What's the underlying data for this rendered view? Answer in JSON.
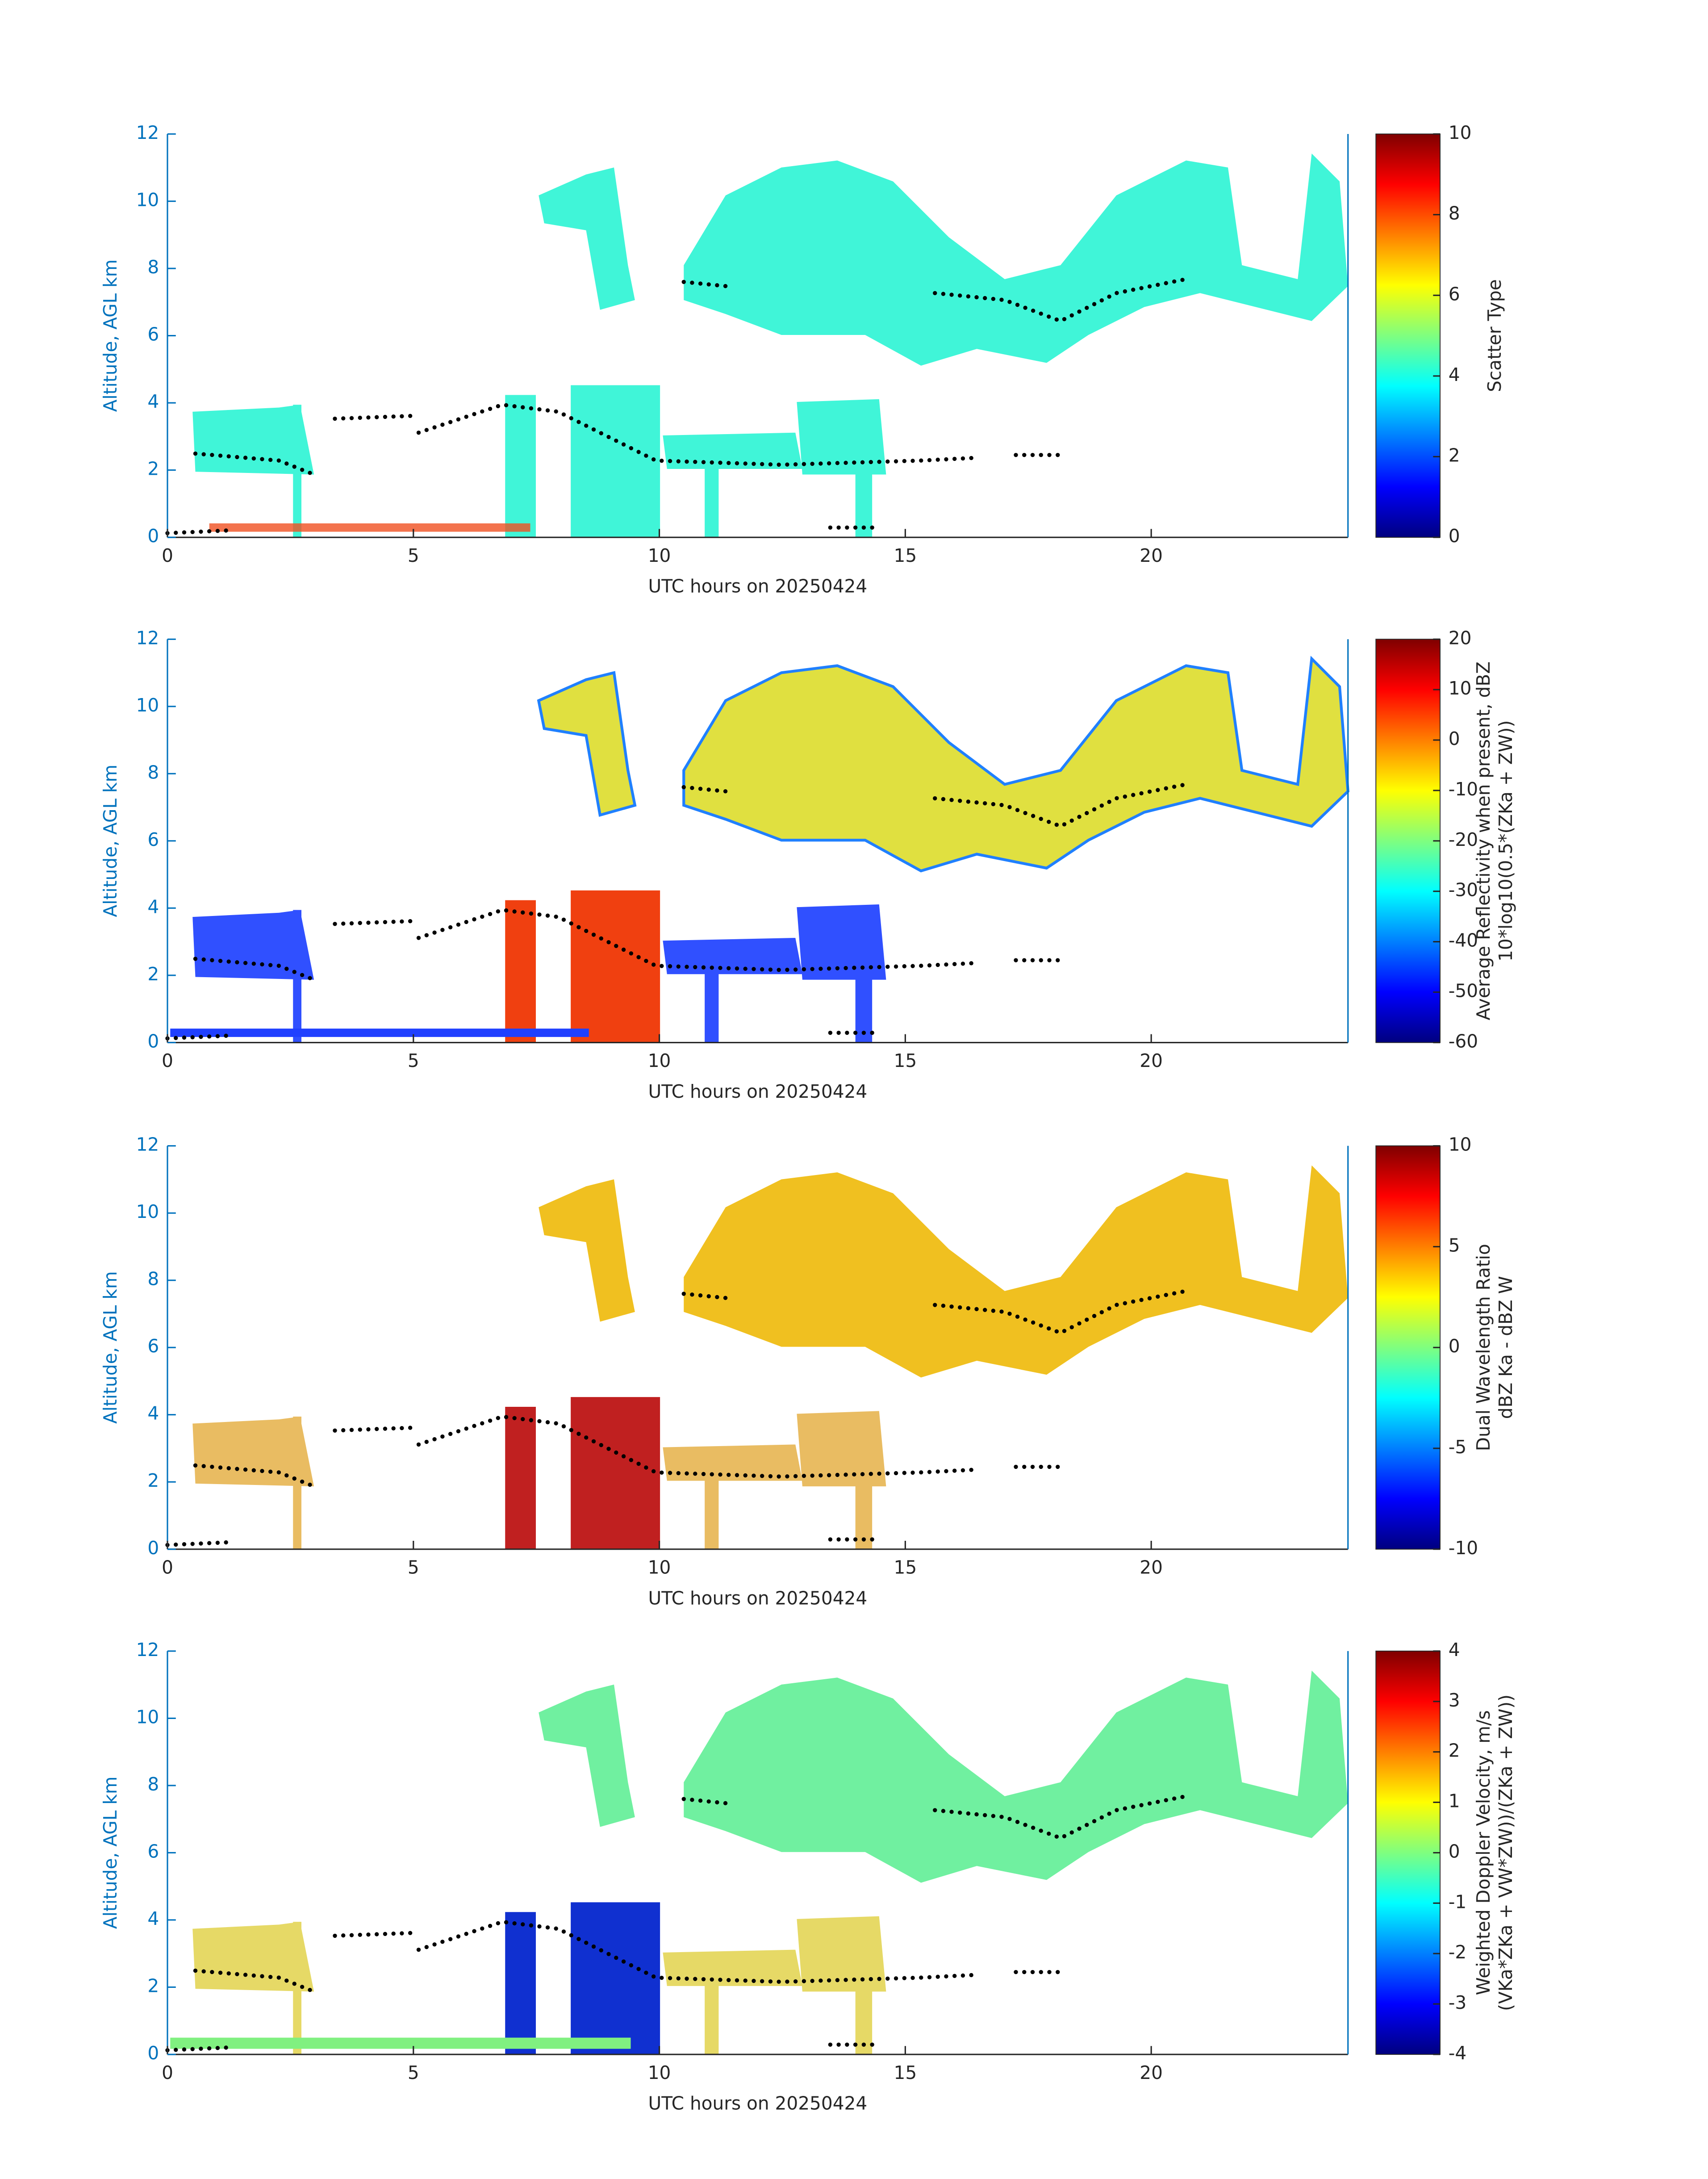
{
  "chart_data": [
    {
      "type": "heatmap",
      "xlabel": "UTC hours on 20250424",
      "ylabel": "Altitude, AGL km",
      "xlim": [
        0,
        24
      ],
      "xticks": [
        0,
        5,
        10,
        15,
        20
      ],
      "ylim": [
        0,
        12
      ],
      "yticks": [
        0,
        2,
        4,
        6,
        8,
        10,
        12
      ],
      "colorbar": {
        "label": [
          "Scatter Type"
        ],
        "lim": [
          0,
          10
        ],
        "ticks": [
          0,
          2,
          4,
          6,
          8,
          10
        ]
      },
      "colormap": [
        "#00007f",
        "#0000ff",
        "#007fff",
        "#00ffff",
        "#7fff7f",
        "#ffff00",
        "#ff7f00",
        "#ff0000",
        "#7f0000"
      ]
    },
    {
      "type": "heatmap",
      "xlabel": "UTC hours on 20250424",
      "ylabel": "Altitude, AGL km",
      "xlim": [
        0,
        24
      ],
      "xticks": [
        0,
        5,
        10,
        15,
        20
      ],
      "ylim": [
        0,
        12
      ],
      "yticks": [
        0,
        2,
        4,
        6,
        8,
        10,
        12
      ],
      "colorbar": {
        "label": [
          "Average Reflectivity when present, dBZ",
          "10*log10(0.5*(ZKa + ZW))"
        ],
        "lim": [
          -60,
          20
        ],
        "ticks": [
          -60,
          -50,
          -40,
          -30,
          -20,
          -10,
          0,
          10,
          20
        ]
      },
      "colormap": [
        "#00007f",
        "#0000ff",
        "#007fff",
        "#00ffff",
        "#7fff7f",
        "#ffff00",
        "#ff7f00",
        "#ff0000",
        "#7f0000"
      ]
    },
    {
      "type": "heatmap",
      "xlabel": "UTC hours on 20250424",
      "ylabel": "Altitude, AGL km",
      "xlim": [
        0,
        24
      ],
      "xticks": [
        0,
        5,
        10,
        15,
        20
      ],
      "ylim": [
        0,
        12
      ],
      "yticks": [
        0,
        2,
        4,
        6,
        8,
        10,
        12
      ],
      "colorbar": {
        "label": [
          "Dual Wavelength Ratio",
          "dBZ Ka - dBZ W"
        ],
        "lim": [
          -10,
          10
        ],
        "ticks": [
          -10,
          -5,
          0,
          5,
          10
        ]
      },
      "colormap": [
        "#00007f",
        "#0000ff",
        "#007fff",
        "#00ffff",
        "#7fff7f",
        "#ffff00",
        "#ff7f00",
        "#ff0000",
        "#7f0000"
      ]
    },
    {
      "type": "heatmap",
      "xlabel": "UTC hours on 20250424",
      "ylabel": "Altitude, AGL km",
      "xlim": [
        0,
        24
      ],
      "xticks": [
        0,
        5,
        10,
        15,
        20
      ],
      "ylim": [
        0,
        12
      ],
      "yticks": [
        0,
        2,
        4,
        6,
        8,
        10,
        12
      ],
      "colorbar": {
        "label": [
          "Weighted Doppler Velocity, m/s",
          "(VKa*ZKa + VW*ZW))/(ZKa + ZW))"
        ],
        "lim": [
          -4,
          4
        ],
        "ticks": [
          -4,
          -3,
          -2,
          -1,
          0,
          1,
          2,
          3,
          4
        ]
      },
      "colormap": [
        "#00007f",
        "#0000ff",
        "#007fff",
        "#00ffff",
        "#7fff7f",
        "#ffff00",
        "#ff7f00",
        "#ff0000",
        "#7f0000"
      ]
    }
  ]
}
